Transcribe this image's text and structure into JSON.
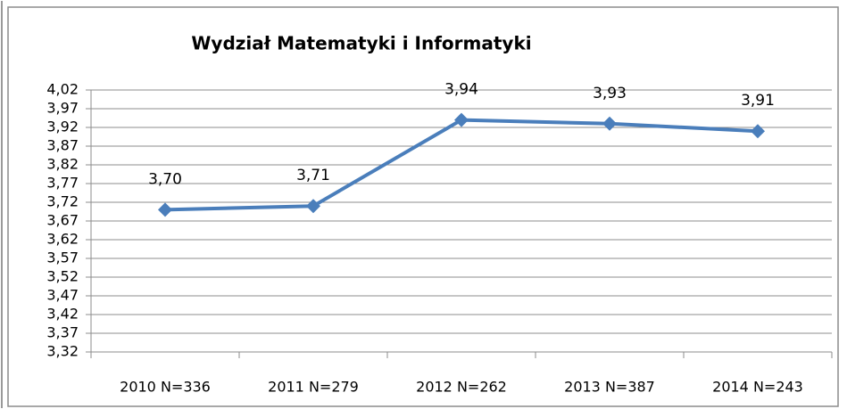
{
  "chart_data": {
    "type": "line",
    "title": "Wydział Matematyki i Informatyki",
    "categories": [
      "2010 N=336",
      "2011 N=279",
      "2012 N=262",
      "2013 N=387",
      "2014 N=243"
    ],
    "series": [
      {
        "name": "Wydział Matematyki i Informatyki",
        "color": "#4a7ebb",
        "values": [
          3.7,
          3.71,
          3.94,
          3.93,
          3.91
        ],
        "value_labels": [
          "3,70",
          "3,71",
          "3,94",
          "3,93",
          "3,91"
        ]
      }
    ],
    "ylim": [
      3.32,
      4.02
    ],
    "yticks": [
      {
        "value": 3.32,
        "label": "3,32"
      },
      {
        "value": 3.37,
        "label": "3,37"
      },
      {
        "value": 3.42,
        "label": "3,42"
      },
      {
        "value": 3.47,
        "label": "3,47"
      },
      {
        "value": 3.52,
        "label": "3,52"
      },
      {
        "value": 3.57,
        "label": "3,57"
      },
      {
        "value": 3.62,
        "label": "3,62"
      },
      {
        "value": 3.67,
        "label": "3,67"
      },
      {
        "value": 3.72,
        "label": "3,72"
      },
      {
        "value": 3.77,
        "label": "3,77"
      },
      {
        "value": 3.82,
        "label": "3,82"
      },
      {
        "value": 3.87,
        "label": "3,87"
      },
      {
        "value": 3.92,
        "label": "3,92"
      },
      {
        "value": 3.97,
        "label": "3,97"
      },
      {
        "value": 4.02,
        "label": "4,02"
      }
    ],
    "grid": true
  }
}
